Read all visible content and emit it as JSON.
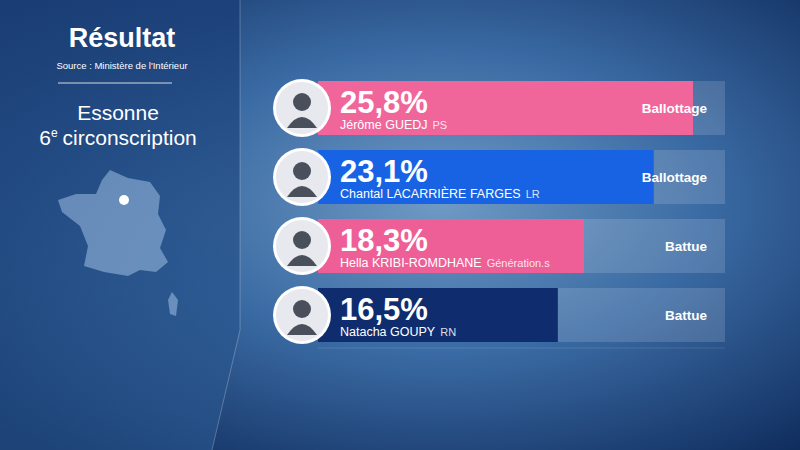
{
  "chart_data": {
    "type": "bar",
    "orientation": "horizontal",
    "title": "Résultat",
    "subtitle": "Source : Ministère de l'Intérieur",
    "region": "Essonne",
    "district_number": "6",
    "district_ordinal": "e",
    "district_word": "circonscription",
    "categories": [
      "Jérôme GUEDJ",
      "Chantal LACARRIÈRE FARGES",
      "Hella KRIBI-ROMDHANE",
      "Natacha GOUPY"
    ],
    "parties": [
      "PS",
      "LR",
      "Génération.s",
      "RN"
    ],
    "statuses": [
      "Ballottage",
      "Ballottage",
      "Battue",
      "Battue"
    ],
    "values": [
      25.8,
      23.1,
      18.3,
      16.5
    ],
    "value_labels": [
      "25,8%",
      "23,1%",
      "18,3%",
      "16,5%"
    ],
    "colors": [
      "#f0669b",
      "#1763e3",
      "#ee5f97",
      "#0f2d6e"
    ],
    "xlim": [
      0,
      28
    ],
    "data_labels": true,
    "tick_labels": false
  }
}
